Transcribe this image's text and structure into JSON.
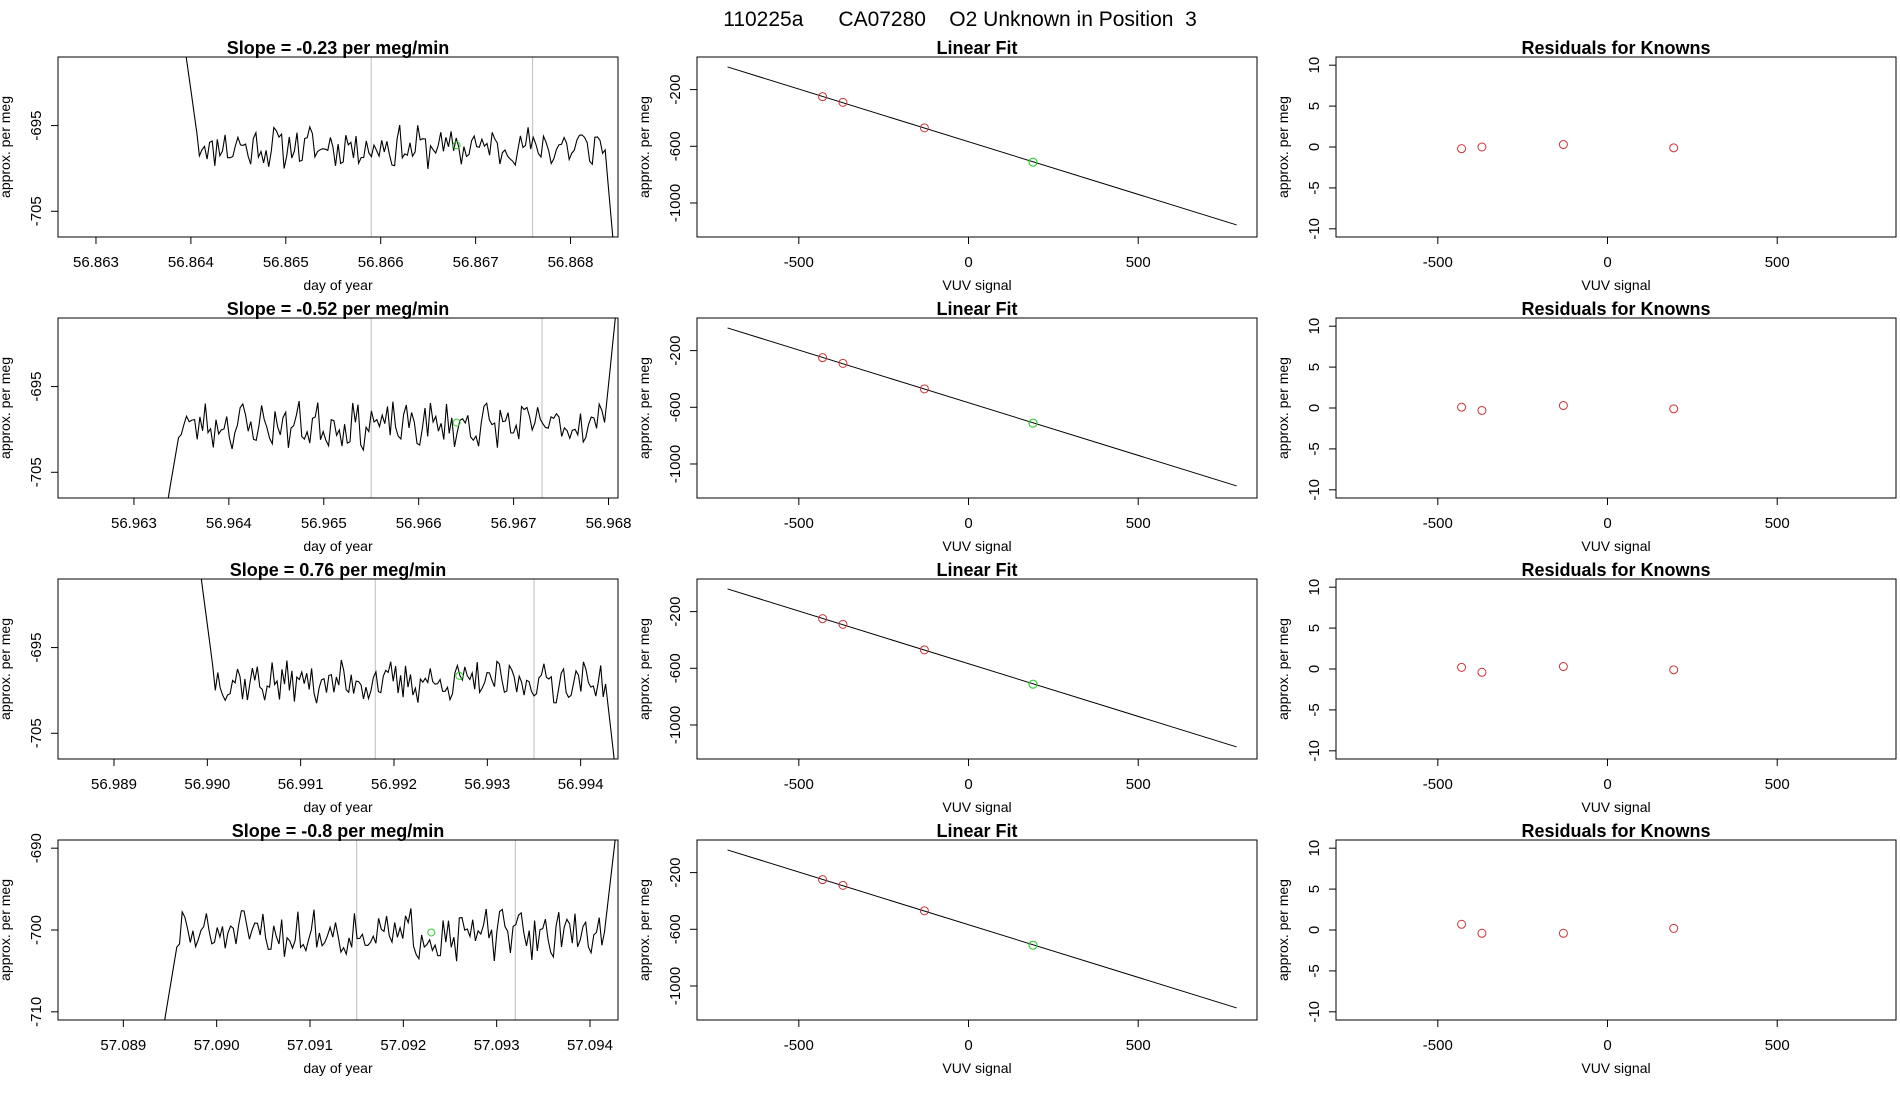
{
  "figure_title": "110225a      CA07280    O2 Unknown in Position  3",
  "colors": {
    "known_point": "#cc3333",
    "unknown_point": "#33cc33",
    "line": "#000000",
    "vline": "#c8c8c8"
  },
  "chart_data": [
    {
      "type": "line",
      "panel": "time-series",
      "row": 0,
      "title": "Slope =  -0.23  per meg/min",
      "xlabel": "day of year",
      "ylabel": "approx. per meg",
      "xlim": [
        56.8626,
        56.8685
      ],
      "ylim": [
        -708,
        -687
      ],
      "xticks": [
        "56.863",
        "56.864",
        "56.865",
        "56.866",
        "56.867",
        "56.868"
      ],
      "yticks": [
        "-695",
        "-705"
      ],
      "vlines": [
        56.8659,
        56.8676
      ],
      "unknown_point": {
        "x": 56.8668,
        "y": -697.3
      },
      "series": [
        {
          "x_start": 56.8639,
          "x_end": 56.8685,
          "y_start": -683,
          "y_level": -697.5,
          "y_end": -715,
          "jitter": 2.0,
          "seed": 11
        }
      ]
    },
    {
      "type": "scatter",
      "panel": "linear-fit",
      "row": 0,
      "title": "Linear Fit",
      "xlabel": "VUV signal",
      "ylabel": "approx. per meg",
      "xlim": [
        -800,
        850
      ],
      "ylim": [
        -1240,
        30
      ],
      "xticks": [
        "-500",
        "0",
        "500"
      ],
      "yticks": [
        "-200",
        "-600",
        "-1000"
      ],
      "fit_line": {
        "x": [
          -710,
          790
        ],
        "y": [
          -40,
          -1155
        ]
      },
      "known_points": [
        {
          "x": -430,
          "y": -250
        },
        {
          "x": -370,
          "y": -290
        },
        {
          "x": -130,
          "y": -470
        }
      ],
      "unknown_point": {
        "x": 190,
        "y": -712
      }
    },
    {
      "type": "scatter",
      "panel": "residuals",
      "row": 0,
      "title": "Residuals for Knowns",
      "xlabel": "VUV signal",
      "ylabel": "approx. per meg",
      "xlim": [
        -800,
        850
      ],
      "ylim": [
        -11,
        11
      ],
      "xticks": [
        "-500",
        "0",
        "500"
      ],
      "yticks": [
        "10",
        "5",
        "0",
        "-5",
        "-10"
      ],
      "points": [
        {
          "x": -430,
          "y": -0.2
        },
        {
          "x": -370,
          "y": 0.0
        },
        {
          "x": -130,
          "y": 0.3
        },
        {
          "x": 195,
          "y": -0.1
        }
      ]
    },
    {
      "type": "line",
      "panel": "time-series",
      "row": 1,
      "title": "Slope =  -0.52  per meg/min",
      "xlabel": "day of year",
      "ylabel": "approx. per meg",
      "xlim": [
        56.9622,
        56.9681
      ],
      "ylim": [
        -708,
        -687
      ],
      "xticks": [
        "56.963",
        "56.964",
        "56.965",
        "56.966",
        "56.967",
        "56.968"
      ],
      "yticks": [
        "-695",
        "-705"
      ],
      "vlines": [
        56.9655,
        56.9673
      ],
      "unknown_point": {
        "x": 56.9664,
        "y": -699.2
      },
      "series": [
        {
          "x_start": 56.9633,
          "x_end": 56.9681,
          "y_start": -712,
          "y_level": -699.5,
          "y_end": -684,
          "jitter": 2.2,
          "seed": 23
        }
      ]
    },
    {
      "type": "scatter",
      "panel": "linear-fit",
      "row": 1,
      "title": "Linear Fit",
      "xlabel": "VUV signal",
      "ylabel": "approx. per meg",
      "xlim": [
        -800,
        850
      ],
      "ylim": [
        -1240,
        30
      ],
      "xticks": [
        "-500",
        "0",
        "500"
      ],
      "yticks": [
        "-200",
        "-600",
        "-1000"
      ],
      "fit_line": {
        "x": [
          -710,
          790
        ],
        "y": [
          -40,
          -1155
        ]
      },
      "known_points": [
        {
          "x": -430,
          "y": -250
        },
        {
          "x": -370,
          "y": -290
        },
        {
          "x": -130,
          "y": -470
        }
      ],
      "unknown_point": {
        "x": 190,
        "y": -712
      }
    },
    {
      "type": "scatter",
      "panel": "residuals",
      "row": 1,
      "title": "Residuals for Knowns",
      "xlabel": "VUV signal",
      "ylabel": "approx. per meg",
      "xlim": [
        -800,
        850
      ],
      "ylim": [
        -11,
        11
      ],
      "xticks": [
        "-500",
        "0",
        "500"
      ],
      "yticks": [
        "10",
        "5",
        "0",
        "-5",
        "-10"
      ],
      "points": [
        {
          "x": -430,
          "y": 0.1
        },
        {
          "x": -370,
          "y": -0.3
        },
        {
          "x": -130,
          "y": 0.3
        },
        {
          "x": 195,
          "y": -0.1
        }
      ]
    },
    {
      "type": "line",
      "panel": "time-series",
      "row": 2,
      "title": "Slope =  0.76  per meg/min",
      "xlabel": "day of year",
      "ylabel": "approx. per meg",
      "xlim": [
        56.9884,
        56.9944
      ],
      "ylim": [
        -708,
        -687
      ],
      "xticks": [
        "56.989",
        "56.990",
        "56.991",
        "56.992",
        "56.993",
        "56.994"
      ],
      "yticks": [
        "-695",
        "-705"
      ],
      "vlines": [
        56.9918,
        56.9935
      ],
      "unknown_point": {
        "x": 56.9927,
        "y": -698.3
      },
      "series": [
        {
          "x_start": 56.9899,
          "x_end": 56.9944,
          "y_start": -684,
          "y_level": -699.0,
          "y_end": -712,
          "jitter": 2.0,
          "seed": 37
        }
      ]
    },
    {
      "type": "scatter",
      "panel": "linear-fit",
      "row": 2,
      "title": "Linear Fit",
      "xlabel": "VUV signal",
      "ylabel": "approx. per meg",
      "xlim": [
        -800,
        850
      ],
      "ylim": [
        -1240,
        30
      ],
      "xticks": [
        "-500",
        "0",
        "500"
      ],
      "yticks": [
        "-200",
        "-600",
        "-1000"
      ],
      "fit_line": {
        "x": [
          -710,
          790
        ],
        "y": [
          -40,
          -1155
        ]
      },
      "known_points": [
        {
          "x": -430,
          "y": -250
        },
        {
          "x": -370,
          "y": -290
        },
        {
          "x": -130,
          "y": -470
        }
      ],
      "unknown_point": {
        "x": 190,
        "y": -712
      }
    },
    {
      "type": "scatter",
      "panel": "residuals",
      "row": 2,
      "title": "Residuals for Knowns",
      "xlabel": "VUV signal",
      "ylabel": "approx. per meg",
      "xlim": [
        -800,
        850
      ],
      "ylim": [
        -11,
        11
      ],
      "xticks": [
        "-500",
        "0",
        "500"
      ],
      "yticks": [
        "10",
        "5",
        "0",
        "-5",
        "-10"
      ],
      "points": [
        {
          "x": -430,
          "y": 0.2
        },
        {
          "x": -370,
          "y": -0.4
        },
        {
          "x": -130,
          "y": 0.3
        },
        {
          "x": 195,
          "y": -0.1
        }
      ]
    },
    {
      "type": "line",
      "panel": "time-series",
      "row": 3,
      "title": "Slope =  -0.8  per meg/min",
      "xlabel": "day of year",
      "ylabel": "approx. per meg",
      "xlim": [
        57.0883,
        57.0943
      ],
      "ylim": [
        -711,
        -689
      ],
      "xticks": [
        "57.089",
        "57.090",
        "57.091",
        "57.092",
        "57.093",
        "57.094"
      ],
      "yticks": [
        "-690",
        "-700",
        "-710"
      ],
      "vlines": [
        57.0915,
        57.0932
      ],
      "unknown_point": {
        "x": 57.0923,
        "y": -700.3
      },
      "series": [
        {
          "x_start": 57.0894,
          "x_end": 57.0943,
          "y_start": -714,
          "y_level": -700.5,
          "y_end": -686,
          "jitter": 2.5,
          "seed": 51
        }
      ]
    },
    {
      "type": "scatter",
      "panel": "linear-fit",
      "row": 3,
      "title": "Linear Fit",
      "xlabel": "VUV signal",
      "ylabel": "approx. per meg",
      "xlim": [
        -800,
        850
      ],
      "ylim": [
        -1240,
        30
      ],
      "xticks": [
        "-500",
        "0",
        "500"
      ],
      "yticks": [
        "-200",
        "-600",
        "-1000"
      ],
      "fit_line": {
        "x": [
          -710,
          790
        ],
        "y": [
          -40,
          -1155
        ]
      },
      "known_points": [
        {
          "x": -430,
          "y": -250
        },
        {
          "x": -370,
          "y": -290
        },
        {
          "x": -130,
          "y": -470
        }
      ],
      "unknown_point": {
        "x": 190,
        "y": -712
      }
    },
    {
      "type": "scatter",
      "panel": "residuals",
      "row": 3,
      "title": "Residuals for Knowns",
      "xlabel": "VUV signal",
      "ylabel": "approx. per meg",
      "xlim": [
        -800,
        850
      ],
      "ylim": [
        -11,
        11
      ],
      "xticks": [
        "-500",
        "0",
        "500"
      ],
      "yticks": [
        "10",
        "5",
        "0",
        "-5",
        "-10"
      ],
      "points": [
        {
          "x": -430,
          "y": 0.7
        },
        {
          "x": -370,
          "y": -0.4
        },
        {
          "x": -130,
          "y": -0.4
        },
        {
          "x": 195,
          "y": 0.2
        }
      ]
    }
  ]
}
